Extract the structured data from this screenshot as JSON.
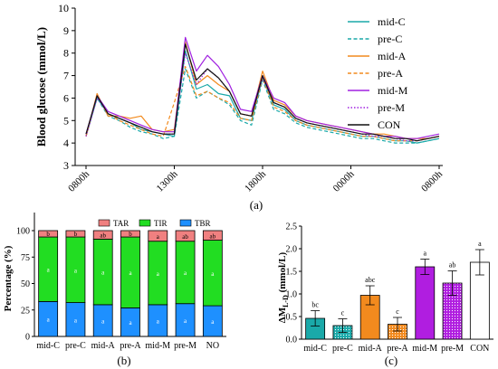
{
  "chart_data": [
    {
      "panel": "(a)",
      "type": "line",
      "ylabel": "Blood glucose (mmol/L)",
      "xlabel": "",
      "ylim": [
        3,
        10
      ],
      "yticks": [
        3,
        4,
        5,
        6,
        7,
        8,
        9,
        10
      ],
      "xticks": [
        "0800h",
        "1300h",
        "1800h",
        "0000h",
        "0800h"
      ],
      "legend_position": "right",
      "series": [
        {
          "name": "mid-C",
          "color": "#1aa9a9",
          "dash": "solid",
          "values": [
            4.3,
            6.0,
            5.3,
            5.1,
            4.9,
            4.6,
            4.5,
            4.4,
            4.3,
            8.1,
            6.4,
            6.6,
            6.2,
            6.1,
            5.1,
            5.0,
            6.9,
            5.7,
            5.5,
            5.0,
            4.8,
            4.7,
            4.6,
            4.5,
            4.4,
            4.3,
            4.3,
            4.2,
            4.1,
            4.1,
            4.0,
            4.1,
            4.2
          ]
        },
        {
          "name": "pre-C",
          "color": "#1aa9a9",
          "dash": "dashed",
          "values": [
            4.3,
            6.0,
            5.2,
            5.0,
            4.7,
            4.5,
            4.4,
            4.2,
            4.3,
            7.3,
            6.0,
            6.3,
            6.0,
            5.7,
            5.0,
            4.8,
            6.8,
            5.5,
            5.3,
            4.9,
            4.7,
            4.6,
            4.5,
            4.4,
            4.3,
            4.2,
            4.2,
            4.1,
            4.0,
            4.0,
            4.0,
            4.1,
            4.2
          ]
        },
        {
          "name": "mid-A",
          "color": "#f28a1e",
          "dash": "solid",
          "values": [
            4.3,
            6.2,
            5.2,
            5.2,
            5.1,
            5.2,
            4.6,
            4.5,
            4.6,
            8.5,
            6.6,
            7.0,
            6.6,
            6.3,
            5.3,
            5.2,
            7.2,
            5.9,
            5.7,
            5.2,
            5.0,
            4.9,
            4.8,
            4.7,
            4.6,
            4.5,
            4.4,
            4.4,
            4.3,
            4.2,
            4.2,
            4.2,
            4.3
          ]
        },
        {
          "name": "pre-A",
          "color": "#f28a1e",
          "dash": "dashed",
          "values": [
            4.3,
            6.1,
            5.3,
            5.0,
            4.8,
            4.6,
            4.4,
            4.3,
            5.8,
            7.4,
            6.1,
            6.3,
            6.0,
            5.8,
            5.1,
            5.0,
            6.9,
            5.6,
            5.4,
            5.0,
            4.8,
            4.7,
            4.6,
            4.5,
            4.4,
            4.3,
            4.3,
            4.2,
            4.1,
            4.1,
            4.1,
            4.2,
            4.3
          ]
        },
        {
          "name": "mid-M",
          "color": "#a020e0",
          "dash": "solid",
          "values": [
            4.4,
            6.1,
            5.4,
            5.2,
            5.0,
            4.8,
            4.6,
            4.5,
            4.5,
            8.7,
            7.2,
            7.9,
            7.4,
            6.6,
            5.5,
            5.4,
            7.0,
            6.0,
            5.8,
            5.2,
            5.0,
            4.9,
            4.8,
            4.7,
            4.6,
            4.5,
            4.4,
            4.3,
            4.3,
            4.2,
            4.2,
            4.3,
            4.4
          ]
        },
        {
          "name": "pre-M",
          "color": "#a020e0",
          "dash": "dotted",
          "values": [
            4.3,
            6.0,
            5.3,
            5.1,
            4.9,
            4.7,
            4.5,
            4.4,
            4.4,
            8.0,
            6.6,
            7.3,
            6.9,
            6.3,
            5.3,
            5.2,
            6.9,
            5.8,
            5.6,
            5.1,
            4.9,
            4.8,
            4.7,
            4.6,
            4.5,
            4.4,
            4.3,
            4.3,
            4.2,
            4.1,
            4.1,
            4.2,
            4.3
          ]
        },
        {
          "name": "CON",
          "color": "#111111",
          "dash": "solid",
          "values": [
            4.4,
            6.1,
            5.3,
            5.1,
            4.9,
            4.7,
            4.5,
            4.4,
            4.4,
            8.4,
            6.8,
            7.3,
            6.9,
            6.3,
            5.3,
            5.2,
            7.0,
            5.8,
            5.6,
            5.1,
            4.9,
            4.8,
            4.7,
            4.6,
            4.5,
            4.4,
            4.4,
            4.3,
            4.2,
            4.2,
            4.1,
            4.2,
            4.3
          ]
        }
      ]
    },
    {
      "panel": "(b)",
      "type": "bar",
      "stacked": true,
      "ylabel": "Percentage (%)",
      "xlabel": "",
      "ylim": [
        0,
        100
      ],
      "yticks": [
        0,
        25,
        50,
        75,
        100
      ],
      "legend_position": "top",
      "categories": [
        "mid-C",
        "pre-C",
        "mid-A",
        "pre-A",
        "mid-M",
        "pre-M",
        "NO"
      ],
      "series": [
        {
          "name": "TBR",
          "color": "#1e90ff",
          "values": [
            33,
            32,
            30,
            27,
            30,
            31,
            29
          ],
          "labels": [
            "a",
            "a",
            "a",
            "a",
            "a",
            "a",
            "a"
          ]
        },
        {
          "name": "TIR",
          "color": "#22dd22",
          "values": [
            61,
            62,
            62,
            67,
            60,
            59,
            62
          ],
          "labels": [
            "a",
            "a",
            "a",
            "a",
            "a",
            "a",
            "a"
          ]
        },
        {
          "name": "TAR",
          "color": "#f08080",
          "values": [
            6,
            6,
            8,
            6,
            10,
            10,
            9
          ],
          "labels": [
            "b",
            "b",
            "ab",
            "b",
            "a",
            "ab",
            "ab"
          ]
        }
      ]
    },
    {
      "panel": "(c)",
      "type": "bar",
      "ylabel": "ΔM",
      "ylabel_sub": "L-D",
      "ylabel_unit": " (mmol/L)",
      "xlabel": "",
      "ylim": [
        0,
        2.5
      ],
      "yticks": [
        0,
        0.5,
        1.0,
        1.5,
        2.0,
        2.5
      ],
      "categories": [
        "mid-C",
        "pre-C",
        "mid-A",
        "pre-A",
        "mid-M",
        "pre-M",
        "CON"
      ],
      "values": [
        0.46,
        0.3,
        0.97,
        0.33,
        1.6,
        1.24,
        1.7
      ],
      "errors": [
        0.17,
        0.15,
        0.21,
        0.15,
        0.17,
        0.27,
        0.28
      ],
      "letters": [
        "bc",
        "c",
        "abc",
        "c",
        "a",
        "ab",
        "a"
      ],
      "colors": [
        "#1aa9a9",
        "#1aa9a9",
        "#f28a1e",
        "#f28a1e",
        "#b01ee0",
        "#b01ee0",
        "#ffffff"
      ],
      "hatched": [
        false,
        true,
        false,
        true,
        false,
        true,
        false
      ]
    }
  ]
}
